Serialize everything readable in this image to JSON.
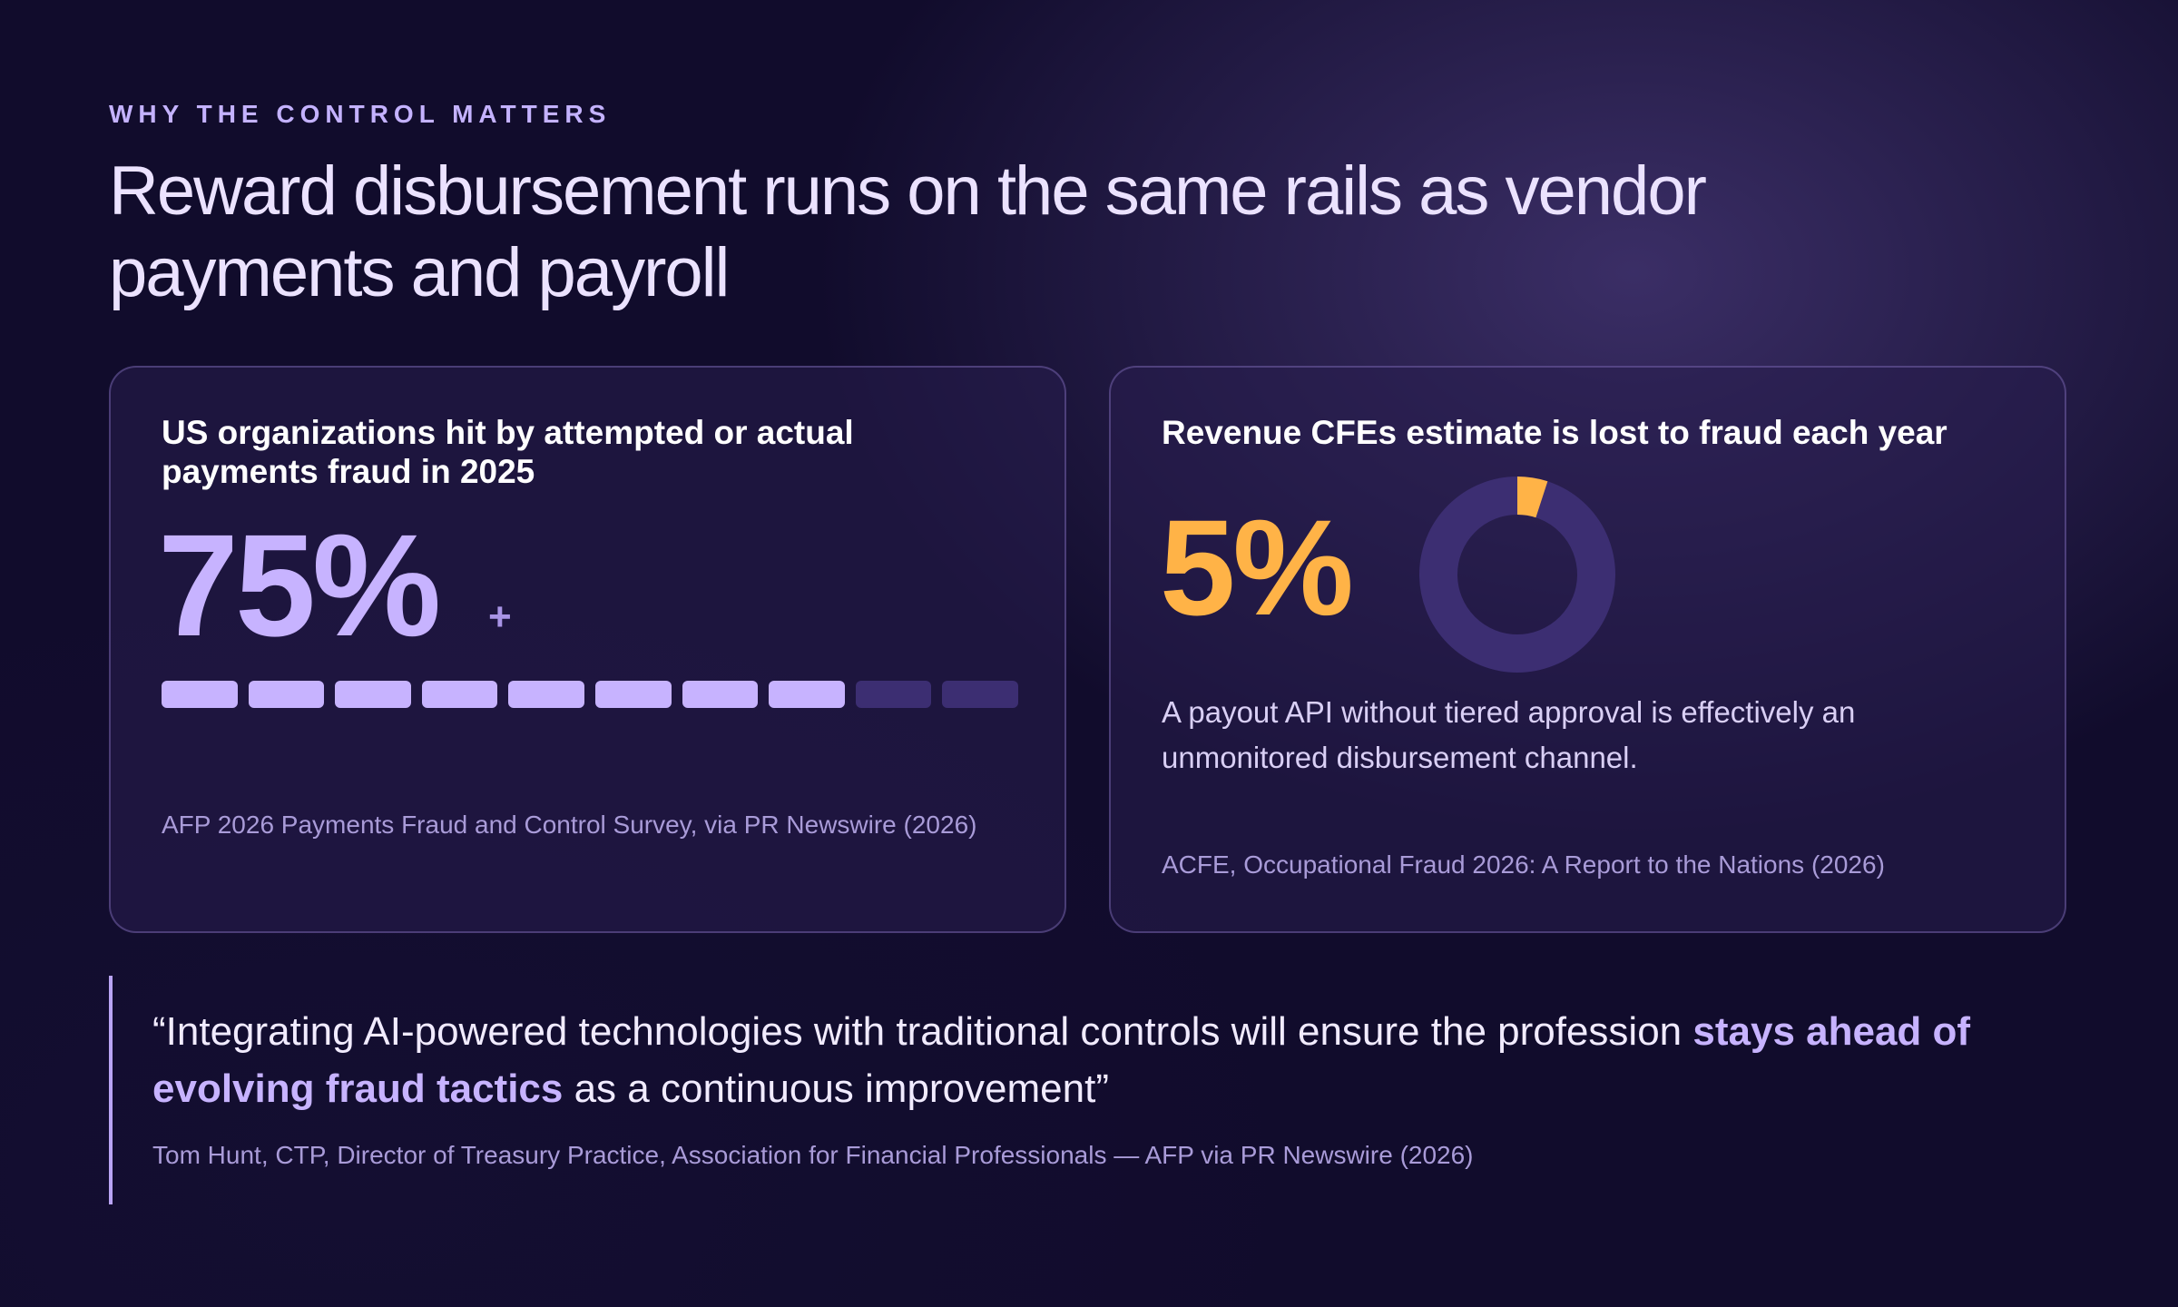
{
  "eyebrow": "WHY THE CONTROL MATTERS",
  "headline": "Reward disbursement runs on the same rails as vendor payments and payroll",
  "colors": {
    "background": "#110c2c",
    "accent_purple": "#c7b3ff",
    "accent_gold": "#ffb347",
    "inactive_segment": "#3c2e72"
  },
  "cards": [
    {
      "title": "US organizations hit by attempted or actual payments fraud in 2025",
      "stat": "75%",
      "stat_suffix": "+",
      "segments_total": 10,
      "segments_filled": 8,
      "source": "AFP 2026 Payments Fraud and Control Survey, via PR Newswire (2026)"
    },
    {
      "title": "Revenue CFEs estimate is lost to fraud each year",
      "stat": "5%",
      "donut_fraction": 0.05,
      "body": "A payout API without tiered approval is effectively an unmonitored disbursement channel.",
      "source": "ACFE, Occupational Fraud 2026: A Report to the Nations (2026)"
    }
  ],
  "quote": {
    "before": "“Integrating AI-powered technologies with traditional controls will ensure the profession ",
    "emphasis": "stays ahead of evolving fraud tactics",
    "after": " as a continuous improvement”",
    "attribution": "Tom Hunt, CTP, Director of Treasury Practice, Association for Financial Professionals — AFP via PR Newswire (2026)"
  }
}
